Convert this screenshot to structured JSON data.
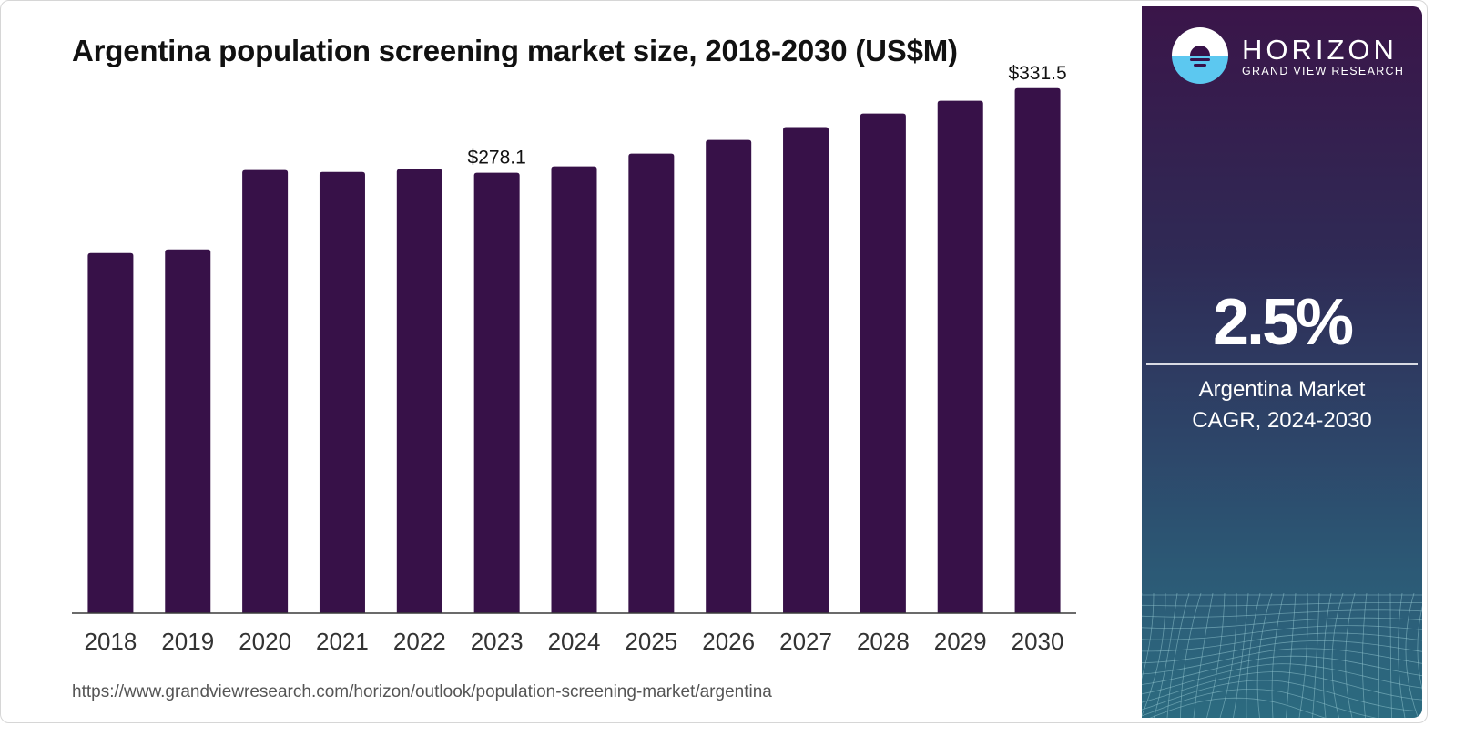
{
  "chart_data": {
    "type": "bar",
    "title": "Argentina population screening market size, 2018-2030 (US$M)",
    "xlabel": "",
    "ylabel": "",
    "categories": [
      "2018",
      "2019",
      "2020",
      "2021",
      "2022",
      "2023",
      "2024",
      "2025",
      "2026",
      "2027",
      "2028",
      "2029",
      "2030"
    ],
    "values": [
      227.4,
      229.7,
      279.8,
      278.6,
      280.4,
      278.1,
      282.1,
      290.2,
      298.8,
      306.9,
      315.5,
      323.5,
      331.5
    ],
    "data_labels": [
      {
        "category": "2023",
        "text": "$278.1"
      },
      {
        "category": "2030",
        "text": "$331.5"
      }
    ],
    "ylim": [
      0,
      340
    ],
    "grid": false,
    "legend": "none",
    "bar_color": "#371148"
  },
  "source_url": "https://www.grandviewresearch.com/horizon/outlook/population-screening-market/argentina",
  "sidebar": {
    "brand_name": "HORIZON",
    "brand_sub": "GRAND VIEW RESEARCH",
    "logo_icon": "horizon-sun-logo",
    "cagr_value": "2.5%",
    "cagr_label_line1": "Argentina Market",
    "cagr_label_line2": "CAGR, 2024-2030",
    "colors": {
      "top": "#3a1549",
      "bottom": "#2c6b80",
      "logo_water": "#5cc8f0"
    }
  }
}
